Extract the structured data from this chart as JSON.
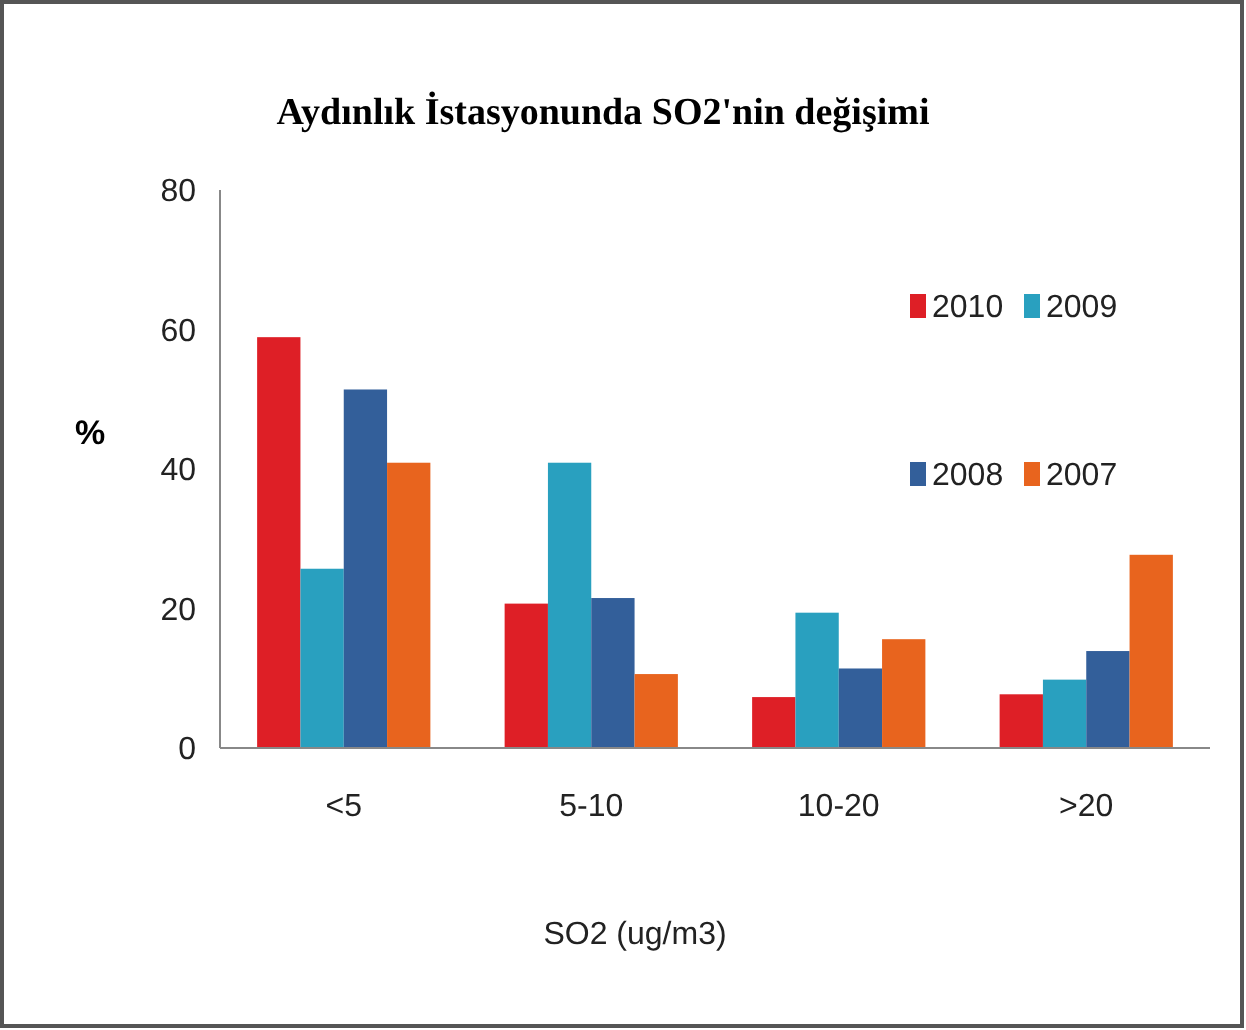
{
  "chart_data": {
    "type": "bar",
    "title": "Aydınlık İstasyonunda SO2'nin değişimi",
    "xlabel": "SO2 (ug/m3)",
    "ylabel": "%",
    "categories": [
      "<5",
      "5-10",
      "10-20",
      ">20"
    ],
    "series": [
      {
        "name": "2010",
        "color": "#de1f26",
        "values": [
          58.9,
          20.7,
          7.3,
          7.7
        ]
      },
      {
        "name": "2009",
        "color": "#29a0bf",
        "values": [
          25.7,
          40.9,
          19.4,
          9.8
        ]
      },
      {
        "name": "2008",
        "color": "#335f9a",
        "values": [
          51.4,
          21.5,
          11.4,
          13.9
        ]
      },
      {
        "name": "2007",
        "color": "#e8641e",
        "values": [
          40.9,
          10.6,
          15.6,
          27.7
        ]
      }
    ],
    "ylim": [
      0,
      80
    ],
    "yticks": [
      0,
      20,
      40,
      60,
      80
    ],
    "grid": false,
    "legend": "top right"
  }
}
